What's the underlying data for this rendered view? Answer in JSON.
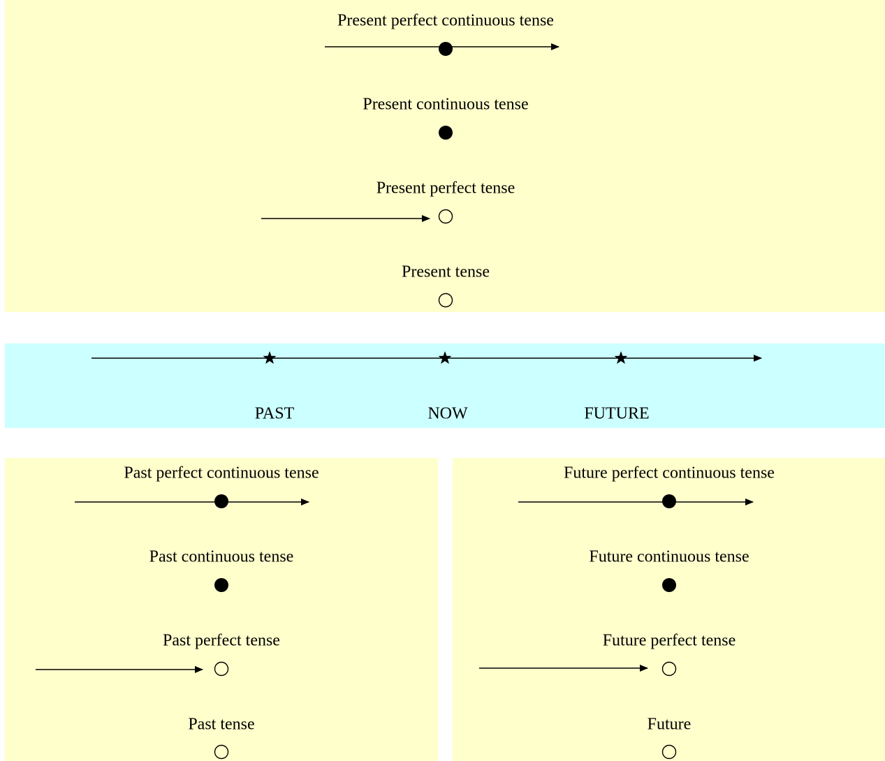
{
  "present": {
    "items": [
      "Present perfect continuous tense",
      "Present continuous tense",
      "Present perfect tense",
      "Present tense"
    ]
  },
  "timeline": {
    "labels": [
      "PAST",
      "NOW",
      "FUTURE"
    ]
  },
  "past": {
    "items": [
      "Past perfect continuous tense",
      "Past continuous tense",
      "Past perfect tense",
      "Past tense"
    ]
  },
  "future": {
    "items": [
      "Future perfect continuous tense",
      "Future continuous tense",
      "Future perfect tense",
      "Future"
    ]
  }
}
